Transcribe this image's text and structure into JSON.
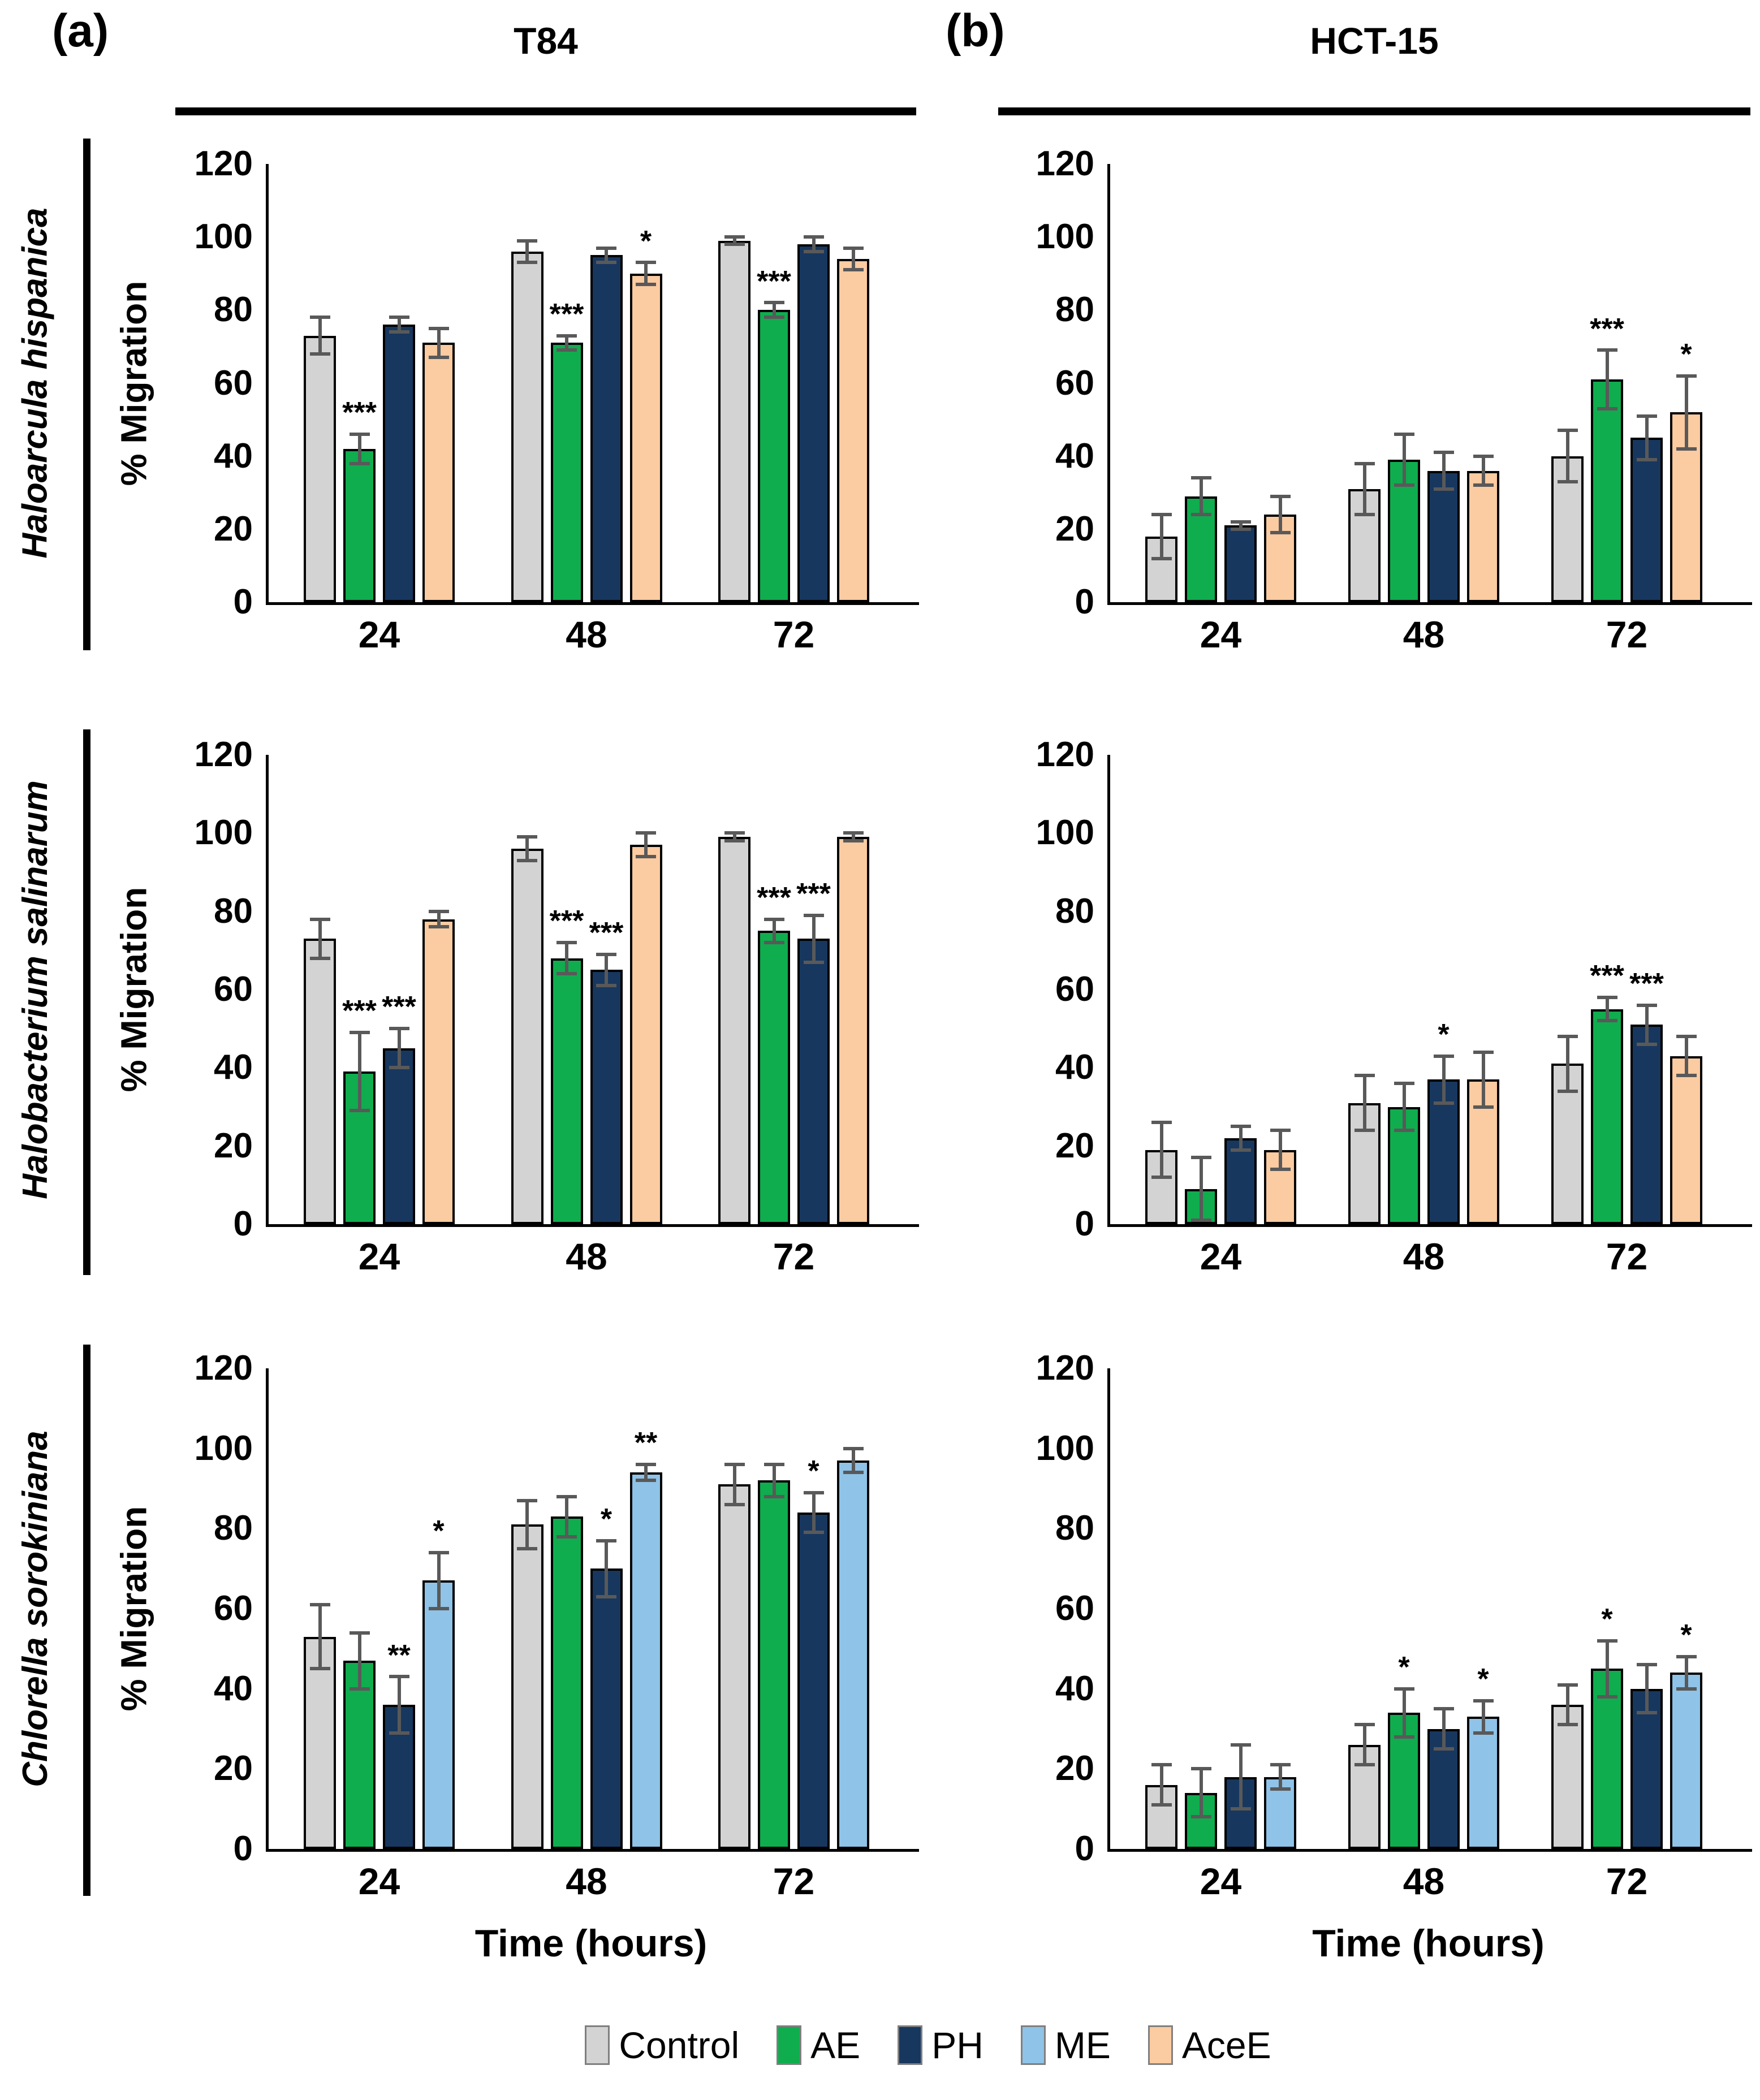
{
  "figure": {
    "panels": [
      {
        "label": "(a)",
        "title": "T84"
      },
      {
        "label": "(b)",
        "title": "HCT-15"
      }
    ],
    "row_labels": [
      "Haloarcula hispanica",
      "Halobacterium salinarum",
      "Chlorella sorokiniana"
    ],
    "ylabel": "% Migration",
    "xlabel": "Time (hours)"
  },
  "colors": {
    "Control": "#D3D3D3",
    "AE": "#0FAD4E",
    "PH": "#17375E",
    "ME": "#8FC3E8",
    "AceE": "#FBCBA1",
    "error_bar": "#595959",
    "bar_border": "#000000"
  },
  "legend": {
    "items": [
      {
        "label": "Control"
      },
      {
        "label": "AE"
      },
      {
        "label": "PH"
      },
      {
        "label": "ME"
      },
      {
        "label": "AceE"
      }
    ]
  },
  "chart_data": [
    {
      "type": "bar",
      "panel": "a",
      "cell_line": "T84",
      "species": "Haloarcula hispanica",
      "categories": [
        "24",
        "48",
        "72"
      ],
      "ylim": [
        0,
        120
      ],
      "yticks": [
        0,
        20,
        40,
        60,
        80,
        100,
        120
      ],
      "series": [
        {
          "name": "Control",
          "values": [
            73,
            96,
            99
          ],
          "errors": [
            5,
            3,
            1
          ],
          "sig": [
            "",
            "",
            ""
          ]
        },
        {
          "name": "AE",
          "values": [
            42,
            71,
            80
          ],
          "errors": [
            4,
            2,
            2
          ],
          "sig": [
            "***",
            "***",
            "***"
          ]
        },
        {
          "name": "PH",
          "values": [
            76,
            95,
            98
          ],
          "errors": [
            2,
            2,
            2
          ],
          "sig": [
            "",
            "",
            ""
          ]
        },
        {
          "name": "AceE",
          "values": [
            71,
            90,
            94
          ],
          "errors": [
            4,
            3,
            3
          ],
          "sig": [
            "",
            "*",
            ""
          ]
        }
      ]
    },
    {
      "type": "bar",
      "panel": "b",
      "cell_line": "HCT-15",
      "species": "Haloarcula hispanica",
      "categories": [
        "24",
        "48",
        "72"
      ],
      "ylim": [
        0,
        120
      ],
      "yticks": [
        0,
        20,
        40,
        60,
        80,
        100,
        120
      ],
      "series": [
        {
          "name": "Control",
          "values": [
            18,
            31,
            40
          ],
          "errors": [
            6,
            7,
            7
          ],
          "sig": [
            "",
            "",
            ""
          ]
        },
        {
          "name": "AE",
          "values": [
            29,
            39,
            61
          ],
          "errors": [
            5,
            7,
            8
          ],
          "sig": [
            "",
            "",
            "***"
          ]
        },
        {
          "name": "PH",
          "values": [
            21,
            36,
            45
          ],
          "errors": [
            1,
            5,
            6
          ],
          "sig": [
            "",
            "",
            ""
          ]
        },
        {
          "name": "AceE",
          "values": [
            24,
            36,
            52
          ],
          "errors": [
            5,
            4,
            10
          ],
          "sig": [
            "",
            "",
            "*"
          ]
        }
      ]
    },
    {
      "type": "bar",
      "panel": "a",
      "cell_line": "T84",
      "species": "Halobacterium salinarum",
      "categories": [
        "24",
        "48",
        "72"
      ],
      "ylim": [
        0,
        120
      ],
      "yticks": [
        0,
        20,
        40,
        60,
        80,
        100,
        120
      ],
      "series": [
        {
          "name": "Control",
          "values": [
            73,
            96,
            99
          ],
          "errors": [
            5,
            3,
            1
          ],
          "sig": [
            "",
            "",
            ""
          ]
        },
        {
          "name": "AE",
          "values": [
            39,
            68,
            75
          ],
          "errors": [
            10,
            4,
            3
          ],
          "sig": [
            "***",
            "***",
            "***"
          ]
        },
        {
          "name": "PH",
          "values": [
            45,
            65,
            73
          ],
          "errors": [
            5,
            4,
            6
          ],
          "sig": [
            "***",
            "***",
            "***"
          ]
        },
        {
          "name": "AceE",
          "values": [
            78,
            97,
            99
          ],
          "errors": [
            2,
            3,
            1
          ],
          "sig": [
            "",
            "",
            ""
          ]
        }
      ]
    },
    {
      "type": "bar",
      "panel": "b",
      "cell_line": "HCT-15",
      "species": "Halobacterium salinarum",
      "categories": [
        "24",
        "48",
        "72"
      ],
      "ylim": [
        0,
        120
      ],
      "yticks": [
        0,
        20,
        40,
        60,
        80,
        100,
        120
      ],
      "series": [
        {
          "name": "Control",
          "values": [
            19,
            31,
            41
          ],
          "errors": [
            7,
            7,
            7
          ],
          "sig": [
            "",
            "",
            ""
          ]
        },
        {
          "name": "AE",
          "values": [
            9,
            30,
            55
          ],
          "errors": [
            8,
            6,
            3
          ],
          "sig": [
            "",
            "",
            "***"
          ]
        },
        {
          "name": "PH",
          "values": [
            22,
            37,
            51
          ],
          "errors": [
            3,
            6,
            5
          ],
          "sig": [
            "",
            "*",
            "***"
          ]
        },
        {
          "name": "AceE",
          "values": [
            19,
            37,
            43
          ],
          "errors": [
            5,
            7,
            5
          ],
          "sig": [
            "",
            "",
            ""
          ]
        }
      ]
    },
    {
      "type": "bar",
      "panel": "a",
      "cell_line": "T84",
      "species": "Chlorella sorokiniana",
      "categories": [
        "24",
        "48",
        "72"
      ],
      "ylim": [
        0,
        120
      ],
      "yticks": [
        0,
        20,
        40,
        60,
        80,
        100,
        120
      ],
      "series": [
        {
          "name": "Control",
          "values": [
            53,
            81,
            91
          ],
          "errors": [
            8,
            6,
            5
          ],
          "sig": [
            "",
            "",
            ""
          ]
        },
        {
          "name": "AE",
          "values": [
            47,
            83,
            92
          ],
          "errors": [
            7,
            5,
            4
          ],
          "sig": [
            "",
            "",
            ""
          ]
        },
        {
          "name": "PH",
          "values": [
            36,
            70,
            84
          ],
          "errors": [
            7,
            7,
            5
          ],
          "sig": [
            "**",
            "*",
            "*"
          ]
        },
        {
          "name": "ME",
          "values": [
            67,
            94,
            97
          ],
          "errors": [
            7,
            2,
            3
          ],
          "sig": [
            "*",
            "**",
            ""
          ]
        }
      ]
    },
    {
      "type": "bar",
      "panel": "b",
      "cell_line": "HCT-15",
      "species": "Chlorella sorokiniana",
      "categories": [
        "24",
        "48",
        "72"
      ],
      "ylim": [
        0,
        120
      ],
      "yticks": [
        0,
        20,
        40,
        60,
        80,
        100,
        120
      ],
      "series": [
        {
          "name": "Control",
          "values": [
            16,
            26,
            36
          ],
          "errors": [
            5,
            5,
            5
          ],
          "sig": [
            "",
            "",
            ""
          ]
        },
        {
          "name": "AE",
          "values": [
            14,
            34,
            45
          ],
          "errors": [
            6,
            6,
            7
          ],
          "sig": [
            "",
            "*",
            "*"
          ]
        },
        {
          "name": "PH",
          "values": [
            18,
            30,
            40
          ],
          "errors": [
            8,
            5,
            6
          ],
          "sig": [
            "",
            "",
            ""
          ]
        },
        {
          "name": "ME",
          "values": [
            18,
            33,
            44
          ],
          "errors": [
            3,
            4,
            4
          ],
          "sig": [
            "",
            "*",
            "*"
          ]
        }
      ]
    }
  ]
}
